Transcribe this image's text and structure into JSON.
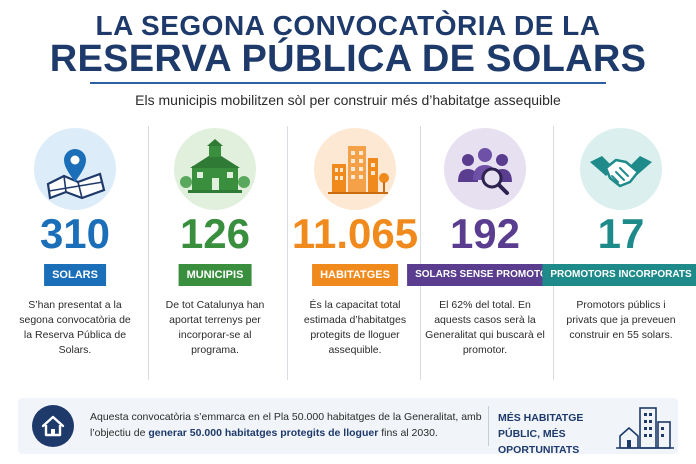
{
  "header": {
    "title_line1": "LA SEGONA CONVOCATÒRIA DE LA",
    "title_line2": "RESERVA PÚBLICA DE SOLARS",
    "subtitle": "Els municipis mobilitzen sòl per construir més d’habitatge assequible"
  },
  "stats": [
    {
      "icon": "map-pin-icon",
      "value": "310",
      "label": "SOLARS",
      "color": "#1a6fb8",
      "circle": "#dcecf8",
      "description": "S’han presentat a la segona convocatòria de la Reserva Pública de Solars."
    },
    {
      "icon": "town-hall-icon",
      "value": "126",
      "label": "MUNICIPIS",
      "color": "#3a8f3f",
      "circle": "#e1f0dd",
      "description": "De tot Catalunya han aportat terrenys per incorporar-se al programa."
    },
    {
      "icon": "buildings-icon",
      "value": "11.065",
      "label": "HABITATGES",
      "color": "#f08a1c",
      "circle": "#fde8d4",
      "description": "És la capacitat total estimada d’habitatges protegits de lloguer assequible."
    },
    {
      "icon": "people-search-icon",
      "value": "192",
      "label": "SOLARS SENSE PROMOTOR",
      "color": "#5a3d8f",
      "circle": "#e7e0f1",
      "description": "El 62% del total. En aquests casos serà la Generalitat qui buscarà el promotor."
    },
    {
      "icon": "handshake-icon",
      "value": "17",
      "label": "PROMOTORS INCORPORATS",
      "color": "#1f8a8a",
      "circle": "#dbefee",
      "description": "Promotors públics i privats que ja preveuen construir en 55 solars."
    }
  ],
  "footer": {
    "icon": "home-icon",
    "text_before": "Aquesta convocatòria s’emmarca en el Pla 50.000 habitatges de la Generalitat, amb l’objectiu de ",
    "text_bold": "generar 50.000 habitatges protegits de lloguer",
    "text_after": " fins al 2030.",
    "slogan": "MÉS HABITATGE PÚBLIC, MÉS OPORTUNITATS",
    "illustration": "city-skyline-icon"
  }
}
